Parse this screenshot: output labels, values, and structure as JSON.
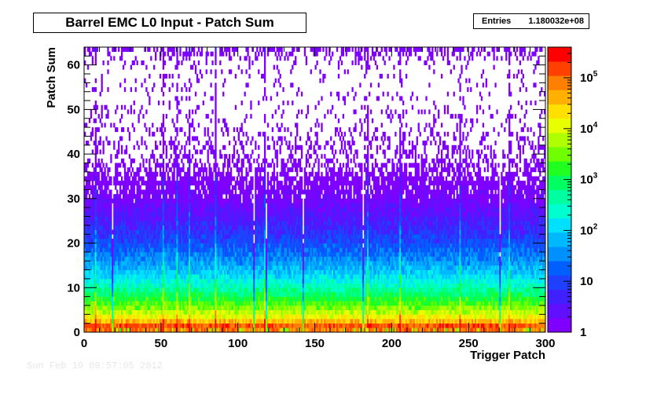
{
  "title": "Barrel EMC L0 Input - Patch Sum",
  "stats": {
    "label": "Entries",
    "value": "1.180032e+08"
  },
  "footer_timestamp": "Sun Feb 19 09:57:05 2012",
  "chart_data": {
    "type": "heatmap",
    "title": "Barrel EMC L0 Input - Patch Sum",
    "xlabel": "Trigger Patch",
    "ylabel": "Patch Sum",
    "xlim": [
      0,
      300
    ],
    "ylim": [
      0,
      64
    ],
    "x_ticks": [
      0,
      50,
      100,
      150,
      200,
      250,
      300
    ],
    "y_ticks": [
      0,
      10,
      20,
      30,
      40,
      50,
      60
    ],
    "z_scale": "log",
    "z_range": [
      1,
      400000
    ],
    "z_ticks": [
      {
        "value": 1,
        "label": "1",
        "base": "",
        "exp": ""
      },
      {
        "value": 10,
        "label": "10",
        "base": "",
        "exp": ""
      },
      {
        "value": 100,
        "label": "",
        "base": "10",
        "exp": "2"
      },
      {
        "value": 1000,
        "label": "",
        "base": "10",
        "exp": "3"
      },
      {
        "value": 10000,
        "label": "",
        "base": "10",
        "exp": "4"
      },
      {
        "value": 100000,
        "label": "",
        "base": "10",
        "exp": "5"
      }
    ],
    "entries": "1.180032e+08",
    "n_patches": 300,
    "n_sum_bins": 64,
    "density_profile": [
      {
        "patch_sum": 0,
        "count": 20000
      },
      {
        "patch_sum": 1,
        "count": 300000
      },
      {
        "patch_sum": 2,
        "count": 60000
      },
      {
        "patch_sum": 3,
        "count": 20000
      },
      {
        "patch_sum": 5,
        "count": 5000
      },
      {
        "patch_sum": 8,
        "count": 1000
      },
      {
        "patch_sum": 12,
        "count": 150
      },
      {
        "patch_sum": 16,
        "count": 40
      },
      {
        "patch_sum": 20,
        "count": 12
      },
      {
        "patch_sum": 25,
        "count": 4
      },
      {
        "patch_sum": 30,
        "count": 1.6
      },
      {
        "patch_sum": 35,
        "count": 0.7
      },
      {
        "patch_sum": 40,
        "count": 0.3
      },
      {
        "patch_sum": 50,
        "count": 0.12
      },
      {
        "patch_sum": 60,
        "count": 0.08
      },
      {
        "patch_sum": 63,
        "count": 0.5
      }
    ],
    "hot_patches": [
      7,
      51,
      60,
      68,
      85,
      117,
      184,
      205,
      244,
      276
    ],
    "dead_patches": [
      18,
      110,
      118,
      142,
      181,
      270
    ],
    "palette": [
      "#8000ff",
      "#6010ff",
      "#4020ff",
      "#2040ff",
      "#0060ff",
      "#0090ff",
      "#00b8ff",
      "#00e0ff",
      "#00ffd0",
      "#00ffa0",
      "#00ff60",
      "#20ff20",
      "#70ff00",
      "#b0ff00",
      "#e8ff00",
      "#ffe000",
      "#ffb000",
      "#ff8000",
      "#ff4000",
      "#ff0000"
    ]
  }
}
